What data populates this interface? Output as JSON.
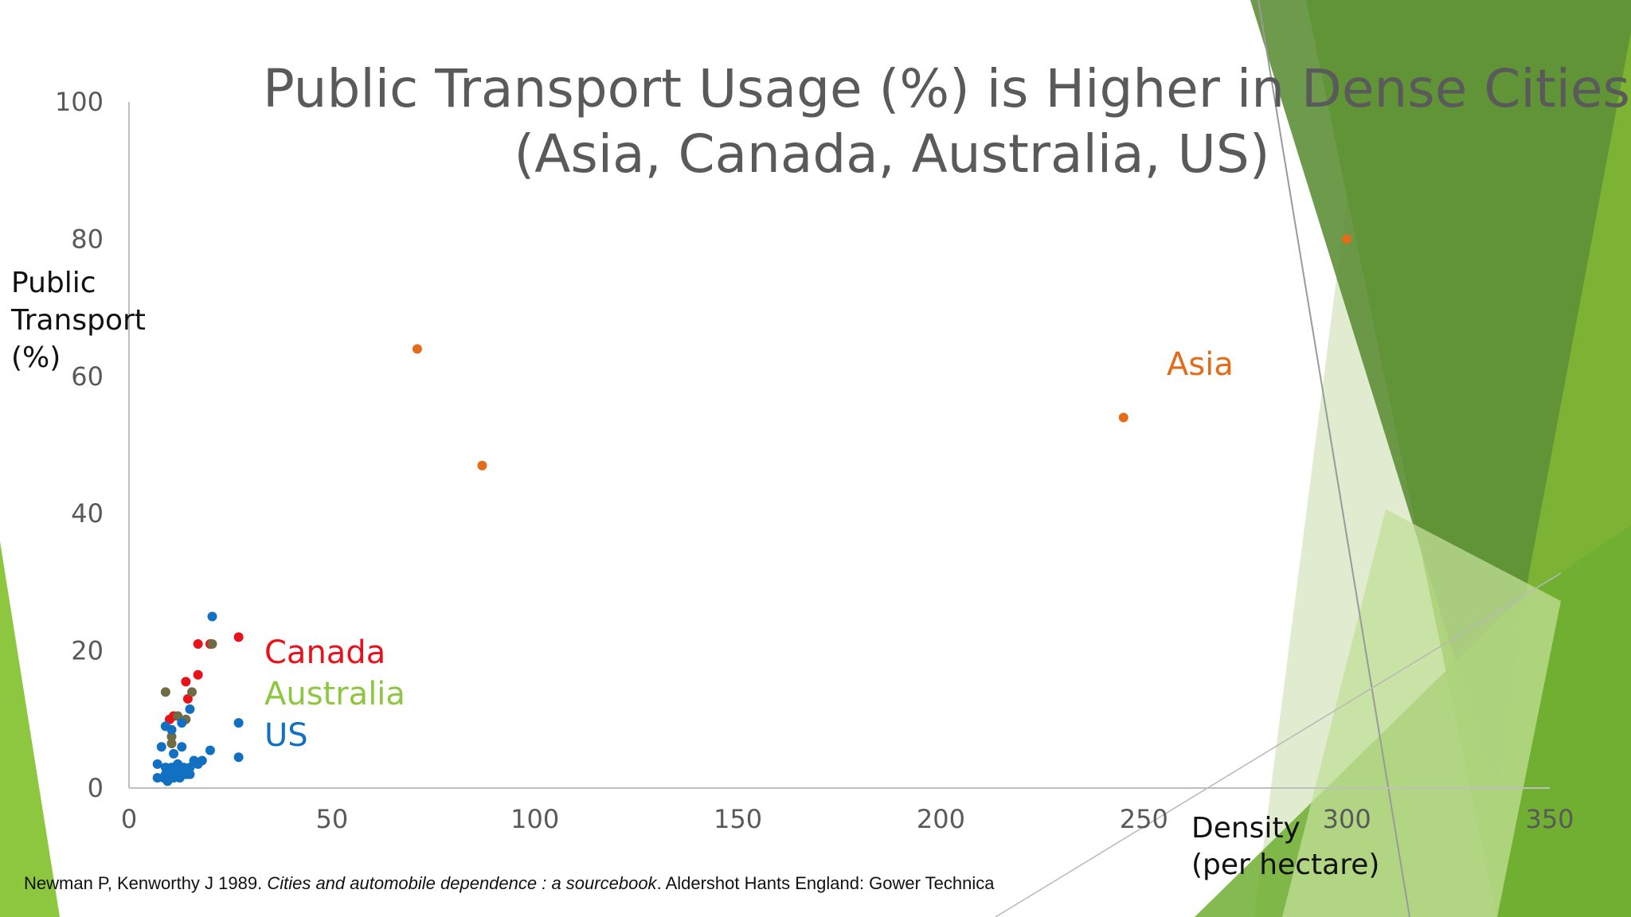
{
  "title": {
    "line1": "Public Transport Usage (%) is Higher in Dense Cities",
    "line2": "(Asia, Canada, Australia, US)"
  },
  "axis_labels": {
    "y_line1": "Public",
    "y_line2": "Transport",
    "y_line3": "(%)",
    "x_line1": "Density",
    "x_line2": "(per hectare)"
  },
  "citation": {
    "authors": "Newman P, Kenworthy J 1989.",
    "work": "Cities and automobile dependence : a sourcebook",
    "publisher": ". Aldershot Hants England: Gower Technica"
  },
  "colors": {
    "asia": "#e36c1b",
    "canada": "#e8121b",
    "australia_label": "#8dc63f",
    "australia_points": "#6e6b45",
    "us": "#1170c2",
    "green_dark": "#5b8c35",
    "green_mid": "#78b337",
    "green_light": "#c9e3a5"
  },
  "chart_data": {
    "type": "scatter",
    "title": "Public Transport Usage (%) is Higher in Dense Cities (Asia, Canada, Australia, US)",
    "xlabel": "Density (per hectare)",
    "ylabel": "Public Transport (%)",
    "xlim": [
      0,
      350
    ],
    "ylim": [
      0,
      100
    ],
    "x_ticks": [
      0,
      50,
      100,
      150,
      200,
      250,
      300,
      350
    ],
    "y_ticks": [
      0,
      20,
      40,
      60,
      80,
      100
    ],
    "grid": false,
    "legend": "none",
    "annotations": [
      {
        "text": "Asia",
        "series": "Asia"
      },
      {
        "text": "Canada",
        "series": "Canada"
      },
      {
        "text": "Australia",
        "series": "Australia"
      },
      {
        "text": "US",
        "series": "US"
      }
    ],
    "series": [
      {
        "name": "Asia",
        "points": [
          [
            71,
            64
          ],
          [
            87,
            47
          ],
          [
            245,
            54
          ],
          [
            300,
            80
          ]
        ]
      },
      {
        "name": "Canada",
        "points": [
          [
            17,
            21
          ],
          [
            20,
            21
          ],
          [
            27,
            22
          ],
          [
            14,
            15.5
          ],
          [
            17,
            16.5
          ],
          [
            14.5,
            13
          ],
          [
            10,
            10
          ],
          [
            11,
            10.5
          ]
        ]
      },
      {
        "name": "Australia",
        "points": [
          [
            9,
            14
          ],
          [
            20.5,
            21
          ],
          [
            15.5,
            14
          ],
          [
            12,
            10.5
          ],
          [
            14,
            10
          ],
          [
            10.5,
            7.5
          ],
          [
            10.5,
            6.5
          ]
        ]
      },
      {
        "name": "US",
        "points": [
          [
            20.5,
            25
          ],
          [
            27,
            9.5
          ],
          [
            27,
            4.5
          ],
          [
            15,
            11.5
          ],
          [
            9,
            9
          ],
          [
            13,
            9.5
          ],
          [
            8,
            6
          ],
          [
            13,
            6
          ],
          [
            20,
            5.5
          ],
          [
            10.5,
            8.5
          ],
          [
            11,
            5
          ],
          [
            7,
            3.5
          ],
          [
            9,
            3
          ],
          [
            10.5,
            3
          ],
          [
            12,
            3.5
          ],
          [
            13.5,
            3
          ],
          [
            15,
            3
          ],
          [
            16,
            4
          ],
          [
            17,
            3.5
          ],
          [
            18,
            4
          ],
          [
            9,
            2
          ],
          [
            10,
            2
          ],
          [
            11,
            2.5
          ],
          [
            12,
            2
          ],
          [
            13,
            2.5
          ],
          [
            14,
            2
          ],
          [
            15,
            2
          ],
          [
            7,
            1.5
          ],
          [
            8.5,
            1.5
          ],
          [
            9.5,
            1
          ],
          [
            11,
            1.5
          ],
          [
            12.5,
            1.5
          ],
          [
            10,
            1.5
          ]
        ]
      }
    ]
  }
}
